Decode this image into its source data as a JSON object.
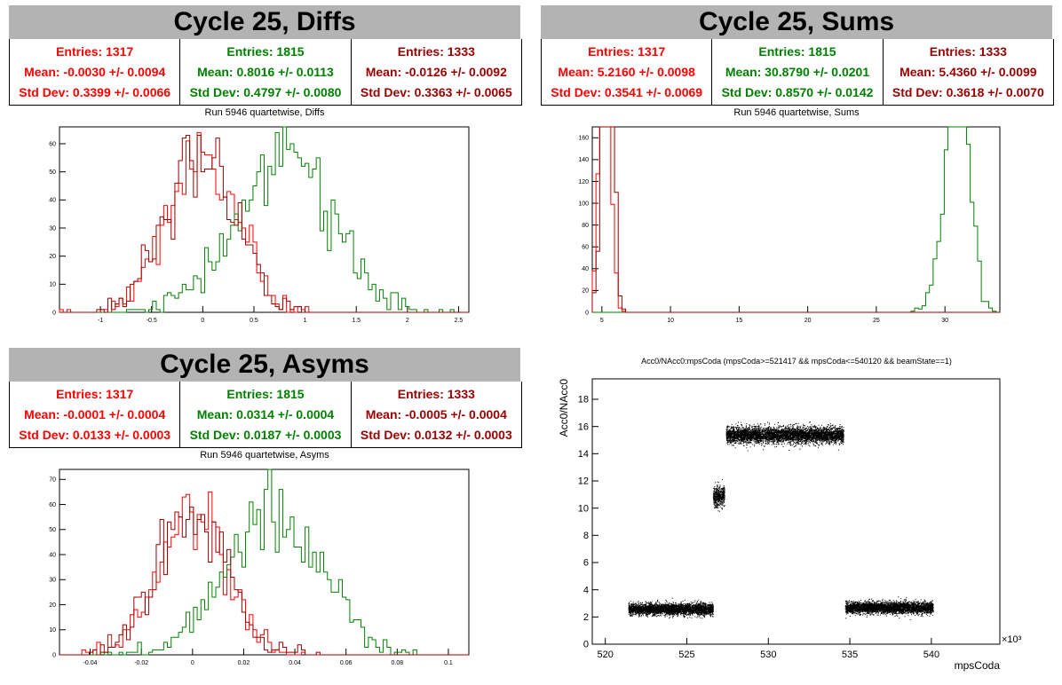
{
  "panels": {
    "diffs": {
      "title": "Cycle 25, Diffs",
      "plot_title": "Run 5946 quartetwise, Diffs",
      "stats": [
        {
          "entries": "Entries: 1317",
          "mean": "Mean: -0.0030 +/- 0.0094",
          "std": "Std Dev: 0.3399 +/- 0.0066",
          "color": "#ff0000"
        },
        {
          "entries": "Entries: 1815",
          "mean": "Mean: 0.8016 +/- 0.0113",
          "std": "Std Dev: 0.4797 +/- 0.0080",
          "color": "#008000"
        },
        {
          "entries": "Entries: 1333",
          "mean": "Mean: -0.0126 +/- 0.0092",
          "std": "Std Dev: 0.3363 +/- 0.0065",
          "color": "#990000"
        }
      ]
    },
    "sums": {
      "title": "Cycle 25, Sums",
      "plot_title": "Run 5946 quartetwise, Sums",
      "stats": [
        {
          "entries": "Entries: 1317",
          "mean": "Mean: 5.2160 +/- 0.0098",
          "std": "Std Dev: 0.3541 +/- 0.0069",
          "color": "#ff0000"
        },
        {
          "entries": "Entries: 1815",
          "mean": "Mean: 30.8790 +/- 0.0201",
          "std": "Std Dev: 0.8570 +/- 0.0142",
          "color": "#008000"
        },
        {
          "entries": "Entries: 1333",
          "mean": "Mean: 5.4360 +/- 0.0099",
          "std": "Std Dev: 0.3618 +/- 0.0070",
          "color": "#990000"
        }
      ]
    },
    "asyms": {
      "title": "Cycle 25, Asyms",
      "plot_title": "Run 5946 quartetwise, Asyms",
      "stats": [
        {
          "entries": "Entries: 1317",
          "mean": "Mean: -0.0001 +/- 0.0004",
          "std": "Std Dev: 0.0133 +/- 0.0003",
          "color": "#ff0000"
        },
        {
          "entries": "Entries: 1815",
          "mean": "Mean: 0.0314 +/- 0.0004",
          "std": "Std Dev: 0.0187 +/- 0.0003",
          "color": "#008000"
        },
        {
          "entries": "Entries: 1333",
          "mean": "Mean: -0.0005 +/- 0.0004",
          "std": "Std Dev: 0.0132 +/- 0.0003",
          "color": "#990000"
        }
      ]
    },
    "scatter": {
      "plot_title": "Acc0/NAcc0:mpsCoda (mpsCoda>=521417 && mpsCoda<=540120 && beamState==1)"
    }
  },
  "chart_data": [
    {
      "type": "histogram",
      "id": "diffs",
      "xlim": [
        -1.4,
        2.6
      ],
      "ylim": [
        0,
        66
      ],
      "xticks": [
        -1,
        -0.5,
        0,
        0.5,
        1,
        1.5,
        2,
        2.5
      ],
      "yticks": [
        0,
        10,
        20,
        30,
        40,
        50,
        60
      ],
      "series": [
        {
          "color": "#ff0000",
          "mean": -0.003,
          "std": 0.3399,
          "entries": 1317
        },
        {
          "color": "#008000",
          "mean": 0.8016,
          "std": 0.4797,
          "entries": 1815
        },
        {
          "color": "#990000",
          "mean": -0.0126,
          "std": 0.3363,
          "entries": 1333
        }
      ]
    },
    {
      "type": "histogram",
      "id": "sums",
      "xlim": [
        4.3,
        34
      ],
      "ylim": [
        0,
        170
      ],
      "xticks": [
        5,
        10,
        15,
        20,
        25,
        30
      ],
      "yticks": [
        0,
        20,
        40,
        60,
        80,
        100,
        120,
        140,
        160
      ],
      "series": [
        {
          "color": "#ff0000",
          "mean": 5.216,
          "std": 0.3541,
          "entries": 1317
        },
        {
          "color": "#008000",
          "mean": 30.879,
          "std": 0.857,
          "entries": 1815
        },
        {
          "color": "#990000",
          "mean": 5.436,
          "std": 0.3618,
          "entries": 1333
        }
      ]
    },
    {
      "type": "histogram",
      "id": "asyms",
      "xlim": [
        -0.052,
        0.108
      ],
      "ylim": [
        0,
        74
      ],
      "xticks": [
        -0.04,
        -0.02,
        0,
        0.02,
        0.04,
        0.06,
        0.08,
        0.1
      ],
      "yticks": [
        0,
        10,
        20,
        30,
        40,
        50,
        60,
        70
      ],
      "series": [
        {
          "color": "#ff0000",
          "mean": -0.0001,
          "std": 0.0133,
          "entries": 1317
        },
        {
          "color": "#008000",
          "mean": 0.0314,
          "std": 0.0187,
          "entries": 1815
        },
        {
          "color": "#990000",
          "mean": -0.0005,
          "std": 0.0132,
          "entries": 1333
        }
      ]
    },
    {
      "type": "scatter",
      "id": "scatter",
      "xlabel": "mpsCoda",
      "ylabel": "Acc0/NAcc0",
      "x_exponent_label": "×10³",
      "xlim": [
        519.2,
        544.2
      ],
      "ylim": [
        0,
        19.5
      ],
      "xticks": [
        520,
        525,
        530,
        535,
        540
      ],
      "yticks": [
        0,
        2,
        4,
        6,
        8,
        10,
        12,
        14,
        16,
        18
      ],
      "clusters": [
        {
          "x_range": [
            521.4,
            526.6
          ],
          "y_center": 2.6,
          "y_spread": 0.35
        },
        {
          "x_range": [
            526.6,
            527.3
          ],
          "y_center": 10.9,
          "y_spread": 0.6
        },
        {
          "x_range": [
            527.4,
            534.6
          ],
          "y_center": 15.4,
          "y_spread": 0.5
        },
        {
          "x_range": [
            534.7,
            540.1
          ],
          "y_center": 2.7,
          "y_spread": 0.35
        }
      ]
    }
  ]
}
